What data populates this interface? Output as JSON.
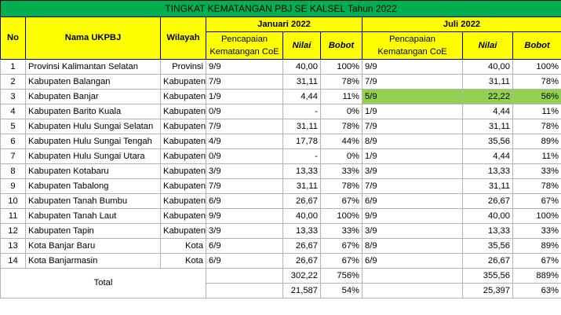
{
  "title": "TINGKAT KEMATANGAN PBJ SE KALSEL Tahun 2022",
  "headers": {
    "no": "No",
    "nama": "Nama UKPBJ",
    "wilayah": "Wilayah",
    "period1": "Januari 2022",
    "period2": "Juli 2022",
    "pencapaian": "Pencapaian Kematangan CoE",
    "nilai": "Nilai",
    "bobot": "Bobot"
  },
  "rows": [
    {
      "no": "1",
      "nama": "Provinsi Kalimantan Selatan",
      "wilayah": "Provinsi",
      "jan_p": "9/9",
      "jan_n": "40,00",
      "jan_b": "100%",
      "jul_p": "9/9",
      "jul_n": "40,00",
      "jul_b": "100%"
    },
    {
      "no": "2",
      "nama": "Kabupaten Balangan",
      "wilayah": "Kabupaten",
      "jan_p": "7/9",
      "jan_n": "31,11",
      "jan_b": "78%",
      "jul_p": "7/9",
      "jul_n": "31,11",
      "jul_b": "78%"
    },
    {
      "no": "3",
      "nama": "Kabupaten Banjar",
      "wilayah": "Kabupaten",
      "jan_p": "1/9",
      "jan_n": "4,44",
      "jan_b": "11%",
      "jul_p": "5/9",
      "jul_n": "22,22",
      "jul_b": "56%"
    },
    {
      "no": "4",
      "nama": "Kabupaten Barito Kuala",
      "wilayah": "Kabupaten",
      "jan_p": "0/9",
      "jan_n": "-",
      "jan_b": "0%",
      "jul_p": "1/9",
      "jul_n": "4,44",
      "jul_b": "11%"
    },
    {
      "no": "5",
      "nama": "Kabupaten Hulu Sungai Selatan",
      "wilayah": "Kabupaten",
      "jan_p": "7/9",
      "jan_n": "31,11",
      "jan_b": "78%",
      "jul_p": "7/9",
      "jul_n": "31,11",
      "jul_b": "78%"
    },
    {
      "no": "6",
      "nama": "Kabupaten Hulu Sungai Tengah",
      "wilayah": "Kabupaten",
      "jan_p": "4/9",
      "jan_n": "17,78",
      "jan_b": "44%",
      "jul_p": "8/9",
      "jul_n": "35,56",
      "jul_b": "89%"
    },
    {
      "no": "7",
      "nama": "Kabupaten Hulu Sungai Utara",
      "wilayah": "Kabupaten",
      "jan_p": "0/9",
      "jan_n": "-",
      "jan_b": "0%",
      "jul_p": "1/9",
      "jul_n": "4,44",
      "jul_b": "11%"
    },
    {
      "no": "8",
      "nama": "Kabupaten Kotabaru",
      "wilayah": "Kabupaten",
      "jan_p": "3/9",
      "jan_n": "13,33",
      "jan_b": "33%",
      "jul_p": "3/9",
      "jul_n": "13,33",
      "jul_b": "33%"
    },
    {
      "no": "9",
      "nama": "Kabupaten Tabalong",
      "wilayah": "Kabupaten",
      "jan_p": "7/9",
      "jan_n": "31,11",
      "jan_b": "78%",
      "jul_p": "7/9",
      "jul_n": "31,11",
      "jul_b": "78%"
    },
    {
      "no": "10",
      "nama": "Kabupaten Tanah Bumbu",
      "wilayah": "Kabupaten",
      "jan_p": "6/9",
      "jan_n": "26,67",
      "jan_b": "67%",
      "jul_p": "6/9",
      "jul_n": "26,67",
      "jul_b": "67%"
    },
    {
      "no": "11",
      "nama": "Kabupaten Tanah Laut",
      "wilayah": "Kabupaten",
      "jan_p": "9/9",
      "jan_n": "40,00",
      "jan_b": "100%",
      "jul_p": "9/9",
      "jul_n": "40,00",
      "jul_b": "100%"
    },
    {
      "no": "12",
      "nama": "Kabupaten Tapin",
      "wilayah": "Kabupaten",
      "jan_p": "3/9",
      "jan_n": "13,33",
      "jan_b": "33%",
      "jul_p": "3/9",
      "jul_n": "13,33",
      "jul_b": "33%"
    },
    {
      "no": "13",
      "nama": "Kota Banjar Baru",
      "wilayah": "Kota",
      "jan_p": "6/9",
      "jan_n": "26,67",
      "jan_b": "67%",
      "jul_p": "8/9",
      "jul_n": "35,56",
      "jul_b": "89%"
    },
    {
      "no": "14",
      "nama": "Kota Banjarmasin",
      "wilayah": "Kota",
      "jan_p": "6/9",
      "jan_n": "26,67",
      "jan_b": "67%",
      "jul_p": "6/9",
      "jul_n": "26,67",
      "jul_b": "67%"
    }
  ],
  "total": {
    "label": "Total",
    "jan_n_sum": "302,22",
    "jan_b_sum": "756%",
    "jul_n_sum": "355,56",
    "jul_b_sum": "889%",
    "jan_n_avg": "21,587",
    "jan_b_avg": "54%",
    "jul_n_avg": "25,397",
    "jul_b_avg": "63%"
  },
  "colors": {
    "title_bg": "#00b050",
    "header_bg": "#ffff00",
    "highlight_bg": "#92d050"
  }
}
